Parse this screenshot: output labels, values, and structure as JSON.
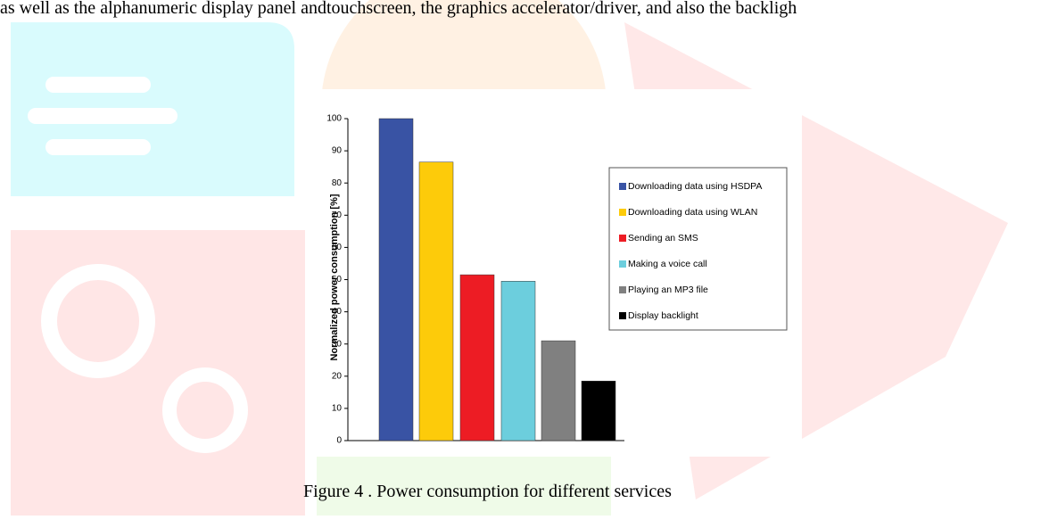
{
  "text": "as well as the alphanumeric display panel andtouchscreen, the graphics accelerator/driver, and also the backligh",
  "chart_data": {
    "type": "bar",
    "y_label": "Normalized power consumption [%]",
    "series": [
      {
        "name": "Downloading data using HSDPA",
        "color": "#3953a4",
        "values": [
          100
        ]
      },
      {
        "name": "Downloading data using WLAN",
        "color": "#fdcb0a",
        "values": [
          86.5
        ]
      },
      {
        "name": "Sending an SMS",
        "color": "#ed1c24",
        "values": [
          51.5
        ]
      },
      {
        "name": "Making a voice call",
        "color": "#6ccedd",
        "values": [
          49.5
        ]
      },
      {
        "name": "Playing an MP3 file",
        "color": "#808080",
        "values": [
          31
        ]
      },
      {
        "name": "Display backlight",
        "color": "#000000",
        "values": [
          18.5
        ]
      }
    ],
    "ylim": [
      0,
      100
    ],
    "yticks": [
      0,
      10,
      20,
      30,
      40,
      50,
      60,
      70,
      80,
      90,
      100
    ],
    "legend": "right"
  },
  "caption": "Figure 4 . Power consumption for different services"
}
